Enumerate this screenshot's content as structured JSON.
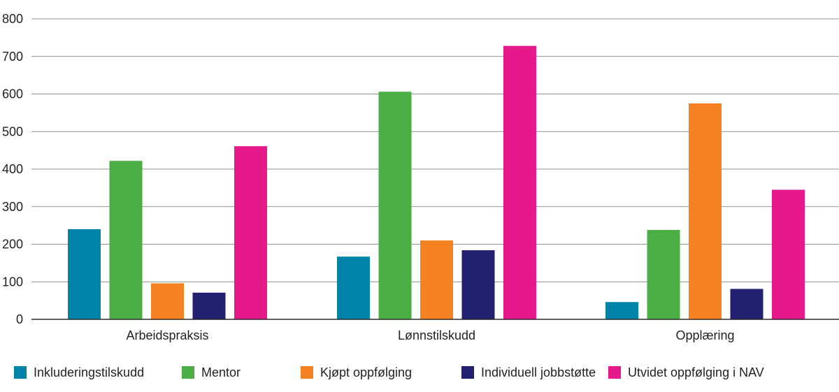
{
  "chart_data": {
    "type": "bar",
    "title": "",
    "xlabel": "",
    "ylabel": "",
    "ylim": [
      0,
      800
    ],
    "yticks": [
      0,
      100,
      200,
      300,
      400,
      500,
      600,
      700,
      800
    ],
    "grid": true,
    "legend_position": "bottom",
    "categories": [
      "Arbeidspraksis",
      "Lønnstilskudd",
      "Opplæring"
    ],
    "series": [
      {
        "name": "Inkluderingstilskudd",
        "color": "#0083a9",
        "values": [
          240,
          167,
          46
        ]
      },
      {
        "name": "Mentor",
        "color": "#4caf45",
        "values": [
          422,
          606,
          238
        ]
      },
      {
        "name": "Kjøpt oppfølging",
        "color": "#f58220",
        "values": [
          96,
          210,
          575
        ]
      },
      {
        "name": "Individuell jobbstøtte",
        "color": "#231f71",
        "values": [
          71,
          184,
          81
        ]
      },
      {
        "name": "Utvidet oppfølging i NAV",
        "color": "#e5198a",
        "values": [
          461,
          728,
          345
        ]
      }
    ]
  }
}
